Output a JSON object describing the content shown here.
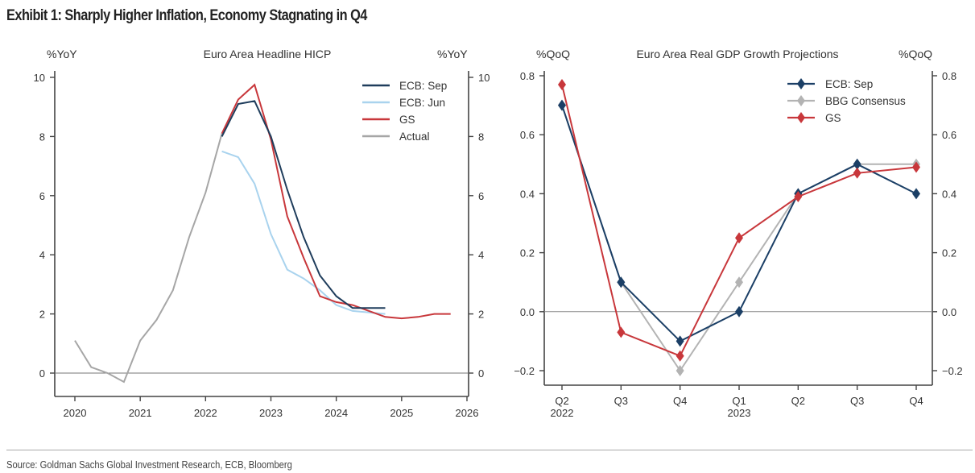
{
  "page": {
    "title": "Exhibit 1: Sharply Higher Inflation, Economy Stagnating in Q4",
    "source": "Source: Goldman Sachs Global Investment Research, ECB, Bloomberg"
  },
  "chart_data": [
    {
      "type": "line",
      "title": "Euro Area Headline HICP",
      "ylabel_left": "%YoY",
      "ylabel_right": "%YoY",
      "xlabel": "",
      "xlim": [
        2020,
        2026
      ],
      "ylim": [
        -0.8,
        10.2
      ],
      "xticks": [
        "2020",
        "2021",
        "2022",
        "2023",
        "2024",
        "2025",
        "2026"
      ],
      "yticks": [
        "0",
        "2",
        "4",
        "6",
        "8",
        "10"
      ],
      "grid": false,
      "zero_line": true,
      "legend": "top-right",
      "series": [
        {
          "name": "ECB: Sep",
          "color": "#1f3d5c",
          "points": [
            [
              2022.25,
              8.0
            ],
            [
              2022.5,
              9.1
            ],
            [
              2022.75,
              9.2
            ],
            [
              2023.0,
              8.0
            ],
            [
              2023.25,
              6.2
            ],
            [
              2023.5,
              4.6
            ],
            [
              2023.75,
              3.3
            ],
            [
              2024.0,
              2.6
            ],
            [
              2024.25,
              2.2
            ],
            [
              2024.5,
              2.2
            ],
            [
              2024.75,
              2.2
            ]
          ]
        },
        {
          "name": "ECB: Jun",
          "color": "#a9d3ee",
          "points": [
            [
              2022.25,
              7.5
            ],
            [
              2022.5,
              7.3
            ],
            [
              2022.75,
              6.4
            ],
            [
              2023.0,
              4.7
            ],
            [
              2023.25,
              3.5
            ],
            [
              2023.5,
              3.2
            ],
            [
              2023.75,
              2.8
            ],
            [
              2024.0,
              2.3
            ],
            [
              2024.25,
              2.1
            ],
            [
              2024.5,
              2.05
            ],
            [
              2024.75,
              2.0
            ]
          ]
        },
        {
          "name": "GS",
          "color": "#c8373b",
          "points": [
            [
              2022.25,
              8.1
            ],
            [
              2022.5,
              9.25
            ],
            [
              2022.75,
              9.75
            ],
            [
              2023.0,
              7.9
            ],
            [
              2023.25,
              5.3
            ],
            [
              2023.5,
              3.9
            ],
            [
              2023.75,
              2.6
            ],
            [
              2024.0,
              2.4
            ],
            [
              2024.25,
              2.3
            ],
            [
              2024.5,
              2.1
            ],
            [
              2024.75,
              1.9
            ],
            [
              2025.0,
              1.85
            ],
            [
              2025.25,
              1.9
            ],
            [
              2025.5,
              2.0
            ],
            [
              2025.75,
              2.0
            ]
          ]
        },
        {
          "name": "Actual",
          "color": "#a6a6a6",
          "points": [
            [
              2020.0,
              1.1
            ],
            [
              2020.25,
              0.2
            ],
            [
              2020.5,
              0.0
            ],
            [
              2020.75,
              -0.3
            ],
            [
              2021.0,
              1.1
            ],
            [
              2021.25,
              1.8
            ],
            [
              2021.5,
              2.8
            ],
            [
              2021.75,
              4.6
            ],
            [
              2022.0,
              6.1
            ],
            [
              2022.25,
              8.1
            ]
          ]
        }
      ]
    },
    {
      "type": "line",
      "title": "Euro Area Real GDP Growth Projections",
      "ylabel_left": "%QoQ",
      "ylabel_right": "%QoQ",
      "xlabel": "",
      "categories": [
        "Q2\n2022",
        "Q3",
        "Q4",
        "Q1\n2023",
        "Q2",
        "Q3",
        "Q4"
      ],
      "ylim": [
        -0.25,
        0.82
      ],
      "yticks": [
        "-0.2",
        "0.0",
        "0.2",
        "0.4",
        "0.6",
        "0.8"
      ],
      "grid": false,
      "zero_line": true,
      "markers": "diamond",
      "legend": "top-right",
      "series": [
        {
          "name": "ECB: Sep",
          "color": "#1b3f66",
          "values": [
            0.7,
            0.1,
            -0.1,
            0.0,
            0.4,
            0.5,
            0.4
          ]
        },
        {
          "name": "BBG Consensus",
          "color": "#b3b3b3",
          "values": [
            0.7,
            0.1,
            -0.2,
            0.1,
            0.4,
            0.5,
            0.5
          ]
        },
        {
          "name": "GS",
          "color": "#c8373b",
          "values": [
            0.77,
            -0.07,
            -0.15,
            0.25,
            0.39,
            0.47,
            0.49
          ]
        }
      ]
    }
  ]
}
